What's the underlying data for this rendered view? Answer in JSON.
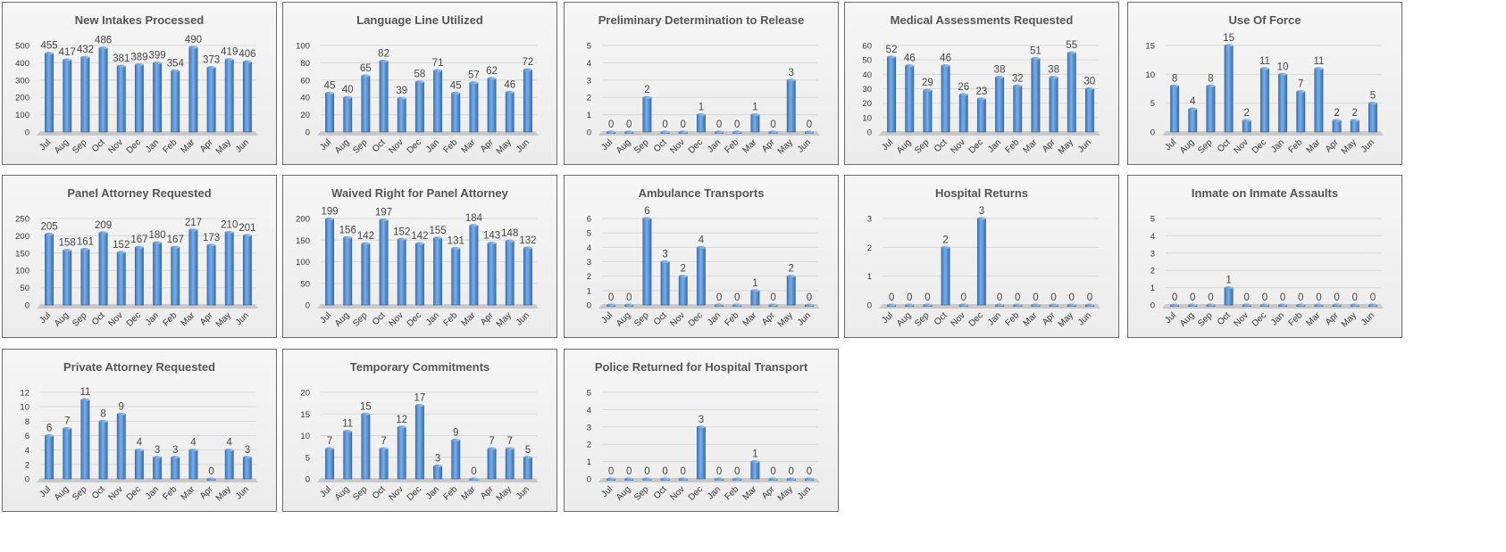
{
  "chart_data": [
    {
      "type": "bar",
      "title": "New Intakes Processed",
      "categories": [
        "Jul",
        "Aug",
        "Sep",
        "Oct",
        "Nov",
        "Dec",
        "Jan",
        "Feb",
        "Mar",
        "Apr",
        "May",
        "Jun"
      ],
      "values": [
        455,
        417,
        432,
        486,
        381,
        389,
        399,
        354,
        490,
        373,
        419,
        406
      ],
      "ylim": [
        0,
        500
      ],
      "yticks": [
        0,
        100,
        200,
        300,
        400,
        500
      ],
      "grid": true
    },
    {
      "type": "bar",
      "title": "Language Line Utilized",
      "categories": [
        "Jul",
        "Aug",
        "Sep",
        "Oct",
        "Nov",
        "Dec",
        "Jan",
        "Feb",
        "Mar",
        "Apr",
        "May",
        "Jun"
      ],
      "values": [
        45,
        40,
        65,
        82,
        39,
        58,
        71,
        45,
        57,
        62,
        46,
        72
      ],
      "ylim": [
        0,
        100
      ],
      "yticks": [
        0,
        20,
        40,
        60,
        80,
        100
      ],
      "grid": true
    },
    {
      "type": "bar",
      "title": "Preliminary Determination to Release",
      "categories": [
        "Jul",
        "Aug",
        "Sep",
        "Oct",
        "Nov",
        "Dec",
        "Jan",
        "Feb",
        "Mar",
        "Apr",
        "May",
        "Jun"
      ],
      "values": [
        0,
        0,
        2,
        0,
        0,
        1,
        0,
        0,
        1,
        0,
        3,
        0
      ],
      "ylim": [
        0,
        5
      ],
      "yticks": [
        0,
        1,
        2,
        3,
        4,
        5
      ],
      "grid": true
    },
    {
      "type": "bar",
      "title": "Medical Assessments Requested",
      "categories": [
        "Jul",
        "Aug",
        "Sep",
        "Oct",
        "Nov",
        "Dec",
        "Jan",
        "Feb",
        "Mar",
        "Apr",
        "May",
        "Jun"
      ],
      "values": [
        52,
        46,
        29,
        46,
        26,
        23,
        38,
        32,
        51,
        38,
        55,
        30
      ],
      "ylim": [
        0,
        60
      ],
      "yticks": [
        0,
        10,
        20,
        30,
        40,
        50,
        60
      ],
      "grid": true
    },
    {
      "type": "bar",
      "title": "Use Of Force",
      "categories": [
        "Jul",
        "Aug",
        "Sep",
        "Oct",
        "Nov",
        "Dec",
        "Jan",
        "Feb",
        "Mar",
        "Apr",
        "May",
        "Jun"
      ],
      "values": [
        8,
        4,
        8,
        15,
        2,
        11,
        10,
        7,
        11,
        2,
        2,
        5
      ],
      "ylim": [
        0,
        15
      ],
      "yticks": [
        0,
        5,
        10,
        15
      ],
      "grid": true
    },
    {
      "type": "bar",
      "title": "Panel Attorney Requested",
      "categories": [
        "Jul",
        "Aug",
        "Sep",
        "Oct",
        "Nov",
        "Dec",
        "Jan",
        "Feb",
        "Mar",
        "Apr",
        "May",
        "Jun"
      ],
      "values": [
        205,
        158,
        161,
        209,
        152,
        167,
        180,
        167,
        217,
        173,
        210,
        201
      ],
      "ylim": [
        0,
        250
      ],
      "yticks": [
        0,
        50,
        100,
        150,
        200,
        250
      ],
      "grid": true
    },
    {
      "type": "bar",
      "title": "Waived Right for Panel Attorney",
      "categories": [
        "Jul",
        "Aug",
        "Sep",
        "Oct",
        "Nov",
        "Dec",
        "Jan",
        "Feb",
        "Mar",
        "Apr",
        "May",
        "Jun"
      ],
      "values": [
        199,
        156,
        142,
        197,
        152,
        142,
        155,
        131,
        184,
        143,
        148,
        132
      ],
      "ylim": [
        0,
        200
      ],
      "yticks": [
        0,
        50,
        100,
        150,
        200
      ],
      "grid": true
    },
    {
      "type": "bar",
      "title": "Ambulance Transports",
      "categories": [
        "Jul",
        "Aug",
        "Sep",
        "Oct",
        "Nov",
        "Dec",
        "Jan",
        "Feb",
        "Mar",
        "Apr",
        "May",
        "Jun"
      ],
      "values": [
        0,
        0,
        6,
        3,
        2,
        4,
        0,
        0,
        1,
        0,
        2,
        0
      ],
      "ylim": [
        0,
        6
      ],
      "yticks": [
        0,
        1,
        2,
        3,
        4,
        5,
        6
      ],
      "grid": true
    },
    {
      "type": "bar",
      "title": "Hospital Returns",
      "categories": [
        "Jul",
        "Aug",
        "Sep",
        "Oct",
        "Nov",
        "Dec",
        "Jan",
        "Feb",
        "Mar",
        "Apr",
        "May",
        "Jun"
      ],
      "values": [
        0,
        0,
        0,
        2,
        0,
        3,
        0,
        0,
        0,
        0,
        0,
        0
      ],
      "ylim": [
        0,
        3
      ],
      "yticks": [
        0,
        1,
        2,
        3
      ],
      "grid": true
    },
    {
      "type": "bar",
      "title": "Inmate on Inmate Assaults",
      "categories": [
        "Jul",
        "Aug",
        "Sep",
        "Oct",
        "Nov",
        "Dec",
        "Jan",
        "Feb",
        "Mar",
        "Apr",
        "May",
        "Jun"
      ],
      "values": [
        0,
        0,
        0,
        1,
        0,
        0,
        0,
        0,
        0,
        0,
        0,
        0
      ],
      "ylim": [
        0,
        5
      ],
      "yticks": [
        0,
        1,
        2,
        3,
        4,
        5
      ],
      "grid": true
    },
    {
      "type": "bar",
      "title": "Private Attorney Requested",
      "categories": [
        "Jul",
        "Aug",
        "Sep",
        "Oct",
        "Nov",
        "Dec",
        "Jan",
        "Feb",
        "Mar",
        "Apr",
        "May",
        "Jun"
      ],
      "values": [
        6,
        7,
        11,
        8,
        9,
        4,
        3,
        3,
        4,
        0,
        4,
        3
      ],
      "ylim": [
        0,
        12
      ],
      "yticks": [
        0,
        2,
        4,
        6,
        8,
        10,
        12
      ],
      "grid": true
    },
    {
      "type": "bar",
      "title": "Temporary Commitments",
      "categories": [
        "Jul",
        "Aug",
        "Sep",
        "Oct",
        "Nov",
        "Dec",
        "Jan",
        "Feb",
        "Mar",
        "Apr",
        "May",
        "Jun"
      ],
      "values": [
        7,
        11,
        15,
        7,
        12,
        17,
        3,
        9,
        0,
        7,
        7,
        5
      ],
      "ylim": [
        0,
        20
      ],
      "yticks": [
        0,
        5,
        10,
        15,
        20
      ],
      "grid": true
    },
    {
      "type": "bar",
      "title": "Police Returned for Hospital Transport",
      "categories": [
        "Jul",
        "Aug",
        "Sep",
        "Oct",
        "Nov",
        "Dec",
        "Jan",
        "Feb",
        "Mar",
        "Apr",
        "May",
        "Jun"
      ],
      "values": [
        0,
        0,
        0,
        0,
        0,
        3,
        0,
        0,
        1,
        0,
        0,
        0
      ],
      "ylim": [
        0,
        5
      ],
      "yticks": [
        0,
        1,
        2,
        3,
        4,
        5
      ],
      "grid": true
    }
  ]
}
